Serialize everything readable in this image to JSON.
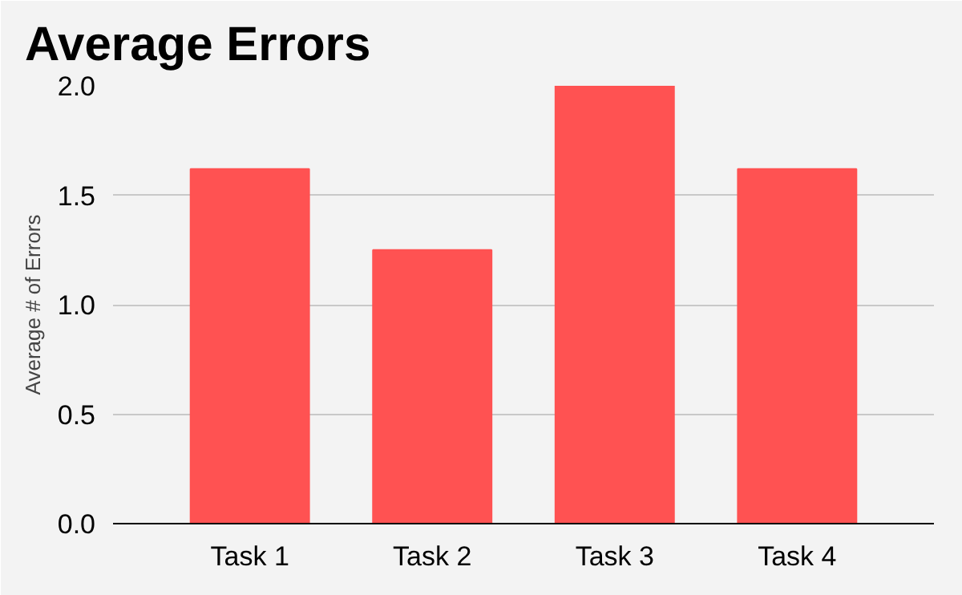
{
  "chart_data": {
    "type": "bar",
    "title": "Average Errors",
    "ylabel": "Average # of Errors",
    "categories": [
      "Task 1",
      "Task 2",
      "Task 3",
      "Task 4"
    ],
    "values": [
      1.62,
      1.25,
      2.0,
      1.62
    ],
    "color": "#ff5252",
    "ylim": [
      0,
      2.0
    ],
    "yticks": [
      {
        "value": 0,
        "label": "0.0"
      },
      {
        "value": 0.5,
        "label": "0.5"
      },
      {
        "value": 1.0,
        "label": "1.0"
      },
      {
        "value": 1.5,
        "label": "1.5"
      },
      {
        "value": 2.0,
        "label": "2.0"
      }
    ],
    "grid": "y"
  }
}
